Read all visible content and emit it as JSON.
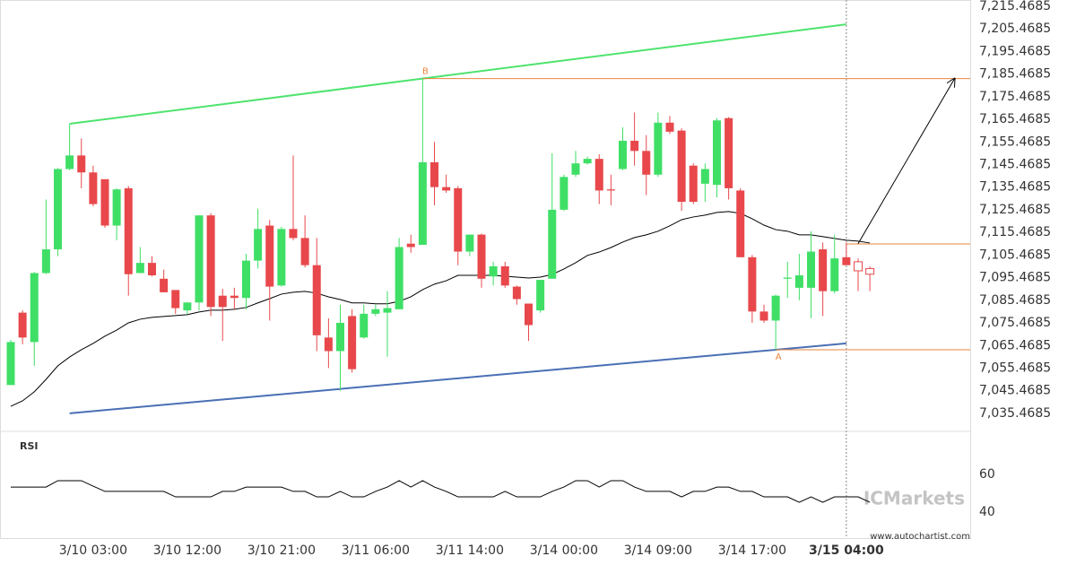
{
  "chart_data": [
    {
      "type": "candlestick",
      "categories": [
        null,
        null,
        null,
        null,
        null,
        null,
        null,
        "3/10 03:00",
        null,
        null,
        null,
        null,
        null,
        null,
        null,
        "3/10 12:00",
        null,
        null,
        null,
        null,
        null,
        null,
        null,
        "3/10 21:00",
        null,
        null,
        null,
        null,
        null,
        null,
        null,
        "3/11 06:00",
        null,
        null,
        null,
        null,
        null,
        null,
        null,
        "3/11 14:00",
        null,
        null,
        null,
        null,
        null,
        null,
        null,
        "3/14 00:00",
        null,
        null,
        null,
        null,
        null,
        null,
        null,
        "3/14 09:00",
        null,
        null,
        null,
        null,
        null,
        null,
        null,
        "3/14 17:00",
        null,
        null,
        null,
        null,
        null,
        null,
        null,
        "3/15 04:00",
        null,
        null
      ],
      "open": [
        7048,
        7080,
        7067,
        7097.5,
        7108,
        7143.5,
        7149.5,
        7142,
        7139,
        7118.5,
        7135,
        7097.5,
        7102,
        7095,
        7090,
        7081,
        7084.5,
        7123,
        7087.5,
        7087.5,
        7086.5,
        7103,
        7118.5,
        7092,
        7117,
        7113,
        7101,
        7069,
        7063,
        7078.5,
        7069,
        7079.5,
        7080,
        7081.5,
        7110.5,
        7110,
        7146.5,
        7135.5,
        7135,
        7107,
        7114.5,
        7096,
        7100.5,
        7091.5,
        7084,
        7081,
        7095,
        7125.5,
        7141,
        7146,
        7148,
        7134.5,
        7143.5,
        7156,
        7151.5,
        7141,
        7164,
        7160.5,
        7145,
        7137,
        7136.5,
        7166,
        7134,
        7104.5,
        7080.5,
        7076.5,
        7095,
        7091,
        7091,
        7108,
        7089.5,
        7104.5,
        7102.5,
        7099.5
      ],
      "high": [
        7068,
        7081,
        7098,
        7130,
        7144,
        7163.5,
        7157,
        7145,
        7139,
        7135,
        7136,
        7109,
        7105,
        7099,
        7090,
        7084.5,
        7123,
        7124,
        7090.5,
        7091,
        7106,
        7126,
        7121,
        7118,
        7149.5,
        7123,
        7113,
        7077.5,
        7083.5,
        7081.5,
        7083.5,
        7083.5,
        7089.5,
        7113,
        7114.5,
        7183.5,
        7155.5,
        7141,
        7136,
        7114.5,
        7115,
        7102.5,
        7102.5,
        7092,
        7084,
        7094.5,
        7150.5,
        7141,
        7151.5,
        7149,
        7150,
        7141,
        7162,
        7168.5,
        7158.5,
        7168.5,
        7167,
        7161.5,
        7146,
        7146,
        7166,
        7166.5,
        7135,
        7105.5,
        7083.5,
        7088,
        7102.5,
        7106,
        7116,
        7111,
        7114.5,
        7111,
        7104,
        7100.5
      ],
      "low": [
        7048,
        7066,
        7056.5,
        7097,
        7105,
        7143,
        7135,
        7127,
        7117.5,
        7112,
        7087.5,
        7097.5,
        7096,
        7089,
        7079.5,
        7079.5,
        7081,
        7078.5,
        7067.5,
        7081.5,
        7081.5,
        7099.5,
        7076.5,
        7091.5,
        7112,
        7100,
        7063,
        7055.5,
        7045.5,
        7053.5,
        7068.5,
        7078.5,
        7060.5,
        7081.5,
        7106.5,
        7110,
        7127.5,
        7133,
        7101,
        7105,
        7091,
        7092,
        7091,
        7083.5,
        7067.5,
        7080,
        7095,
        7125,
        7140,
        7145.5,
        7128,
        7127.5,
        7143,
        7145,
        7132,
        7140,
        7159,
        7125,
        7128,
        7129,
        7131,
        7130,
        7104.5,
        7075.5,
        7075.5,
        7063.5,
        7086.5,
        7085.5,
        7077.5,
        7078.5,
        7088.5,
        7101,
        7089.5,
        7089.5
      ],
      "close": [
        7067,
        7069,
        7097.5,
        7108,
        7143.5,
        7149.5,
        7142,
        7128,
        7118.5,
        7134.5,
        7097,
        7102,
        7096.5,
        7089,
        7082,
        7084.5,
        7123,
        7082.5,
        7082.5,
        7086.5,
        7103,
        7117,
        7091.5,
        7117,
        7113,
        7101,
        7070,
        7063,
        7075.5,
        7055,
        7079.5,
        7081.5,
        7082,
        7109,
        7109,
        7146.5,
        7135.5,
        7134,
        7107,
        7114.5,
        7095,
        7100.5,
        7092,
        7086,
        7074.5,
        7094.5,
        7125.5,
        7140,
        7146,
        7148,
        7134,
        7134,
        7156,
        7151.5,
        7141,
        7164,
        7160,
        7129,
        7129,
        7143.5,
        7165,
        7135,
        7104.5,
        7080.5,
        7076.5,
        7087.5,
        7095.5,
        7096.5,
        7107,
        7089.5,
        7104,
        7101,
        7098.5,
        7097
      ],
      "up_color": "#3fdf66",
      "down_color": "#e8484b",
      "hollow_from": 72,
      "overlays": [
        {
          "color": "#000000",
          "values": [
            7038.6,
            7041.0,
            7045.0,
            7050.5,
            7056.5,
            7060.4,
            7063.6,
            7066.4,
            7069.6,
            7072.3,
            7075.5,
            7077.1,
            7077.9,
            7078.3,
            7078.7,
            7079.1,
            7080.3,
            7081.1,
            7081.1,
            7081.5,
            7082.3,
            7084.3,
            7086.2,
            7088.2,
            7089.0,
            7089.4,
            7088.6,
            7087.0,
            7085.8,
            7084.3,
            7084.3,
            7083.9,
            7083.9,
            7085.0,
            7087.0,
            7090.2,
            7092.6,
            7094.1,
            7096.5,
            7096.5,
            7096.5,
            7096.5,
            7096.1,
            7095.7,
            7095.3,
            7095.7,
            7096.9,
            7099.3,
            7102.1,
            7105.3,
            7106.8,
            7108.8,
            7111.2,
            7113.2,
            7114.4,
            7116.0,
            7118.4,
            7121.1,
            7122.3,
            7123.1,
            7124.3,
            7124.7,
            7123.9,
            7121.5,
            7118.7,
            7116.7,
            7116.0,
            7114.4,
            7114.4,
            7113.6,
            7112.8,
            7112.0,
            7111.6,
            7110.8
          ]
        }
      ],
      "trendlines": [
        {
          "color": "#4ee36e",
          "x": [
            5,
            71
          ],
          "y": [
            7163.5,
            7207.5
          ]
        },
        {
          "color": "#4a6fb5",
          "x": [
            5,
            71
          ],
          "y": [
            7035.5,
            7066.4
          ]
        }
      ],
      "levels": [
        {
          "value": 7183.5,
          "from": 35,
          "label": "B",
          "color": "#e8843c"
        },
        {
          "value": 7063.6,
          "from": 65,
          "label": "A",
          "color": "#e8843c"
        },
        {
          "value": 7110.4,
          "from": 71,
          "color": "#e8843c"
        }
      ],
      "arrow": {
        "x": [
          72,
          80.2
        ],
        "y": [
          7110.5,
          7183.5
        ],
        "color": "#000000"
      },
      "cursor_index": 71,
      "ylim": [
        7027.9,
        7218.24
      ],
      "yticks": [
        {
          "value": 7215.4685,
          "label": "7,215.4685"
        },
        {
          "value": 7205.4685,
          "label": "7,205.4685"
        },
        {
          "value": 7195.4685,
          "label": "7,195.4685"
        },
        {
          "value": 7185.4685,
          "label": "7,185.4685"
        },
        {
          "value": 7175.4685,
          "label": "7,175.4685"
        },
        {
          "value": 7165.4685,
          "label": "7,165.4685"
        },
        {
          "value": 7155.4685,
          "label": "7,155.4685"
        },
        {
          "value": 7145.4685,
          "label": "7,145.4685"
        },
        {
          "value": 7135.4685,
          "label": "7,135.4685"
        },
        {
          "value": 7125.4685,
          "label": "7,125.4685"
        },
        {
          "value": 7115.4685,
          "label": "7,115.4685"
        },
        {
          "value": 7105.4685,
          "label": "7,105.4685"
        },
        {
          "value": 7095.4685,
          "label": "7,095.4685"
        },
        {
          "value": 7085.4685,
          "label": "7,085.4685"
        },
        {
          "value": 7075.4685,
          "label": "7,075.4685"
        },
        {
          "value": 7065.4685,
          "label": "7,065.4685"
        },
        {
          "value": 7055.4685,
          "label": "7,055.4685"
        },
        {
          "value": 7045.4685,
          "label": "7,045.4685"
        },
        {
          "value": 7035.4685,
          "label": "7,035.4685"
        }
      ]
    },
    {
      "type": "line",
      "title": "RSI",
      "color": "#000000",
      "values": [
        53.3,
        53.3,
        53.3,
        53.3,
        56.7,
        56.7,
        56.7,
        53.8,
        51,
        51,
        51,
        51,
        51,
        51,
        48.1,
        48.1,
        48.1,
        48.1,
        51,
        51,
        53.3,
        53.3,
        53.3,
        53.3,
        51,
        51,
        48.1,
        48.1,
        51,
        48.1,
        48.1,
        51,
        53.3,
        56.7,
        53.3,
        56.7,
        53.3,
        51,
        48.1,
        48.1,
        48.1,
        48.1,
        51,
        48.1,
        48.1,
        48.1,
        51,
        53.3,
        56.7,
        56.7,
        53.3,
        56.7,
        56.7,
        53.3,
        51,
        51,
        51,
        48.1,
        51,
        51,
        53.3,
        53.3,
        51,
        51,
        48.1,
        48.1,
        48.1,
        45.2,
        48.1,
        45.2,
        48.1,
        48.1,
        48.1,
        45.2
      ],
      "ylim": [
        26.2,
        82.4
      ],
      "yticks": [
        40,
        60
      ],
      "watermark": "ICMarkets",
      "credit": "www.autochartist.com"
    }
  ]
}
